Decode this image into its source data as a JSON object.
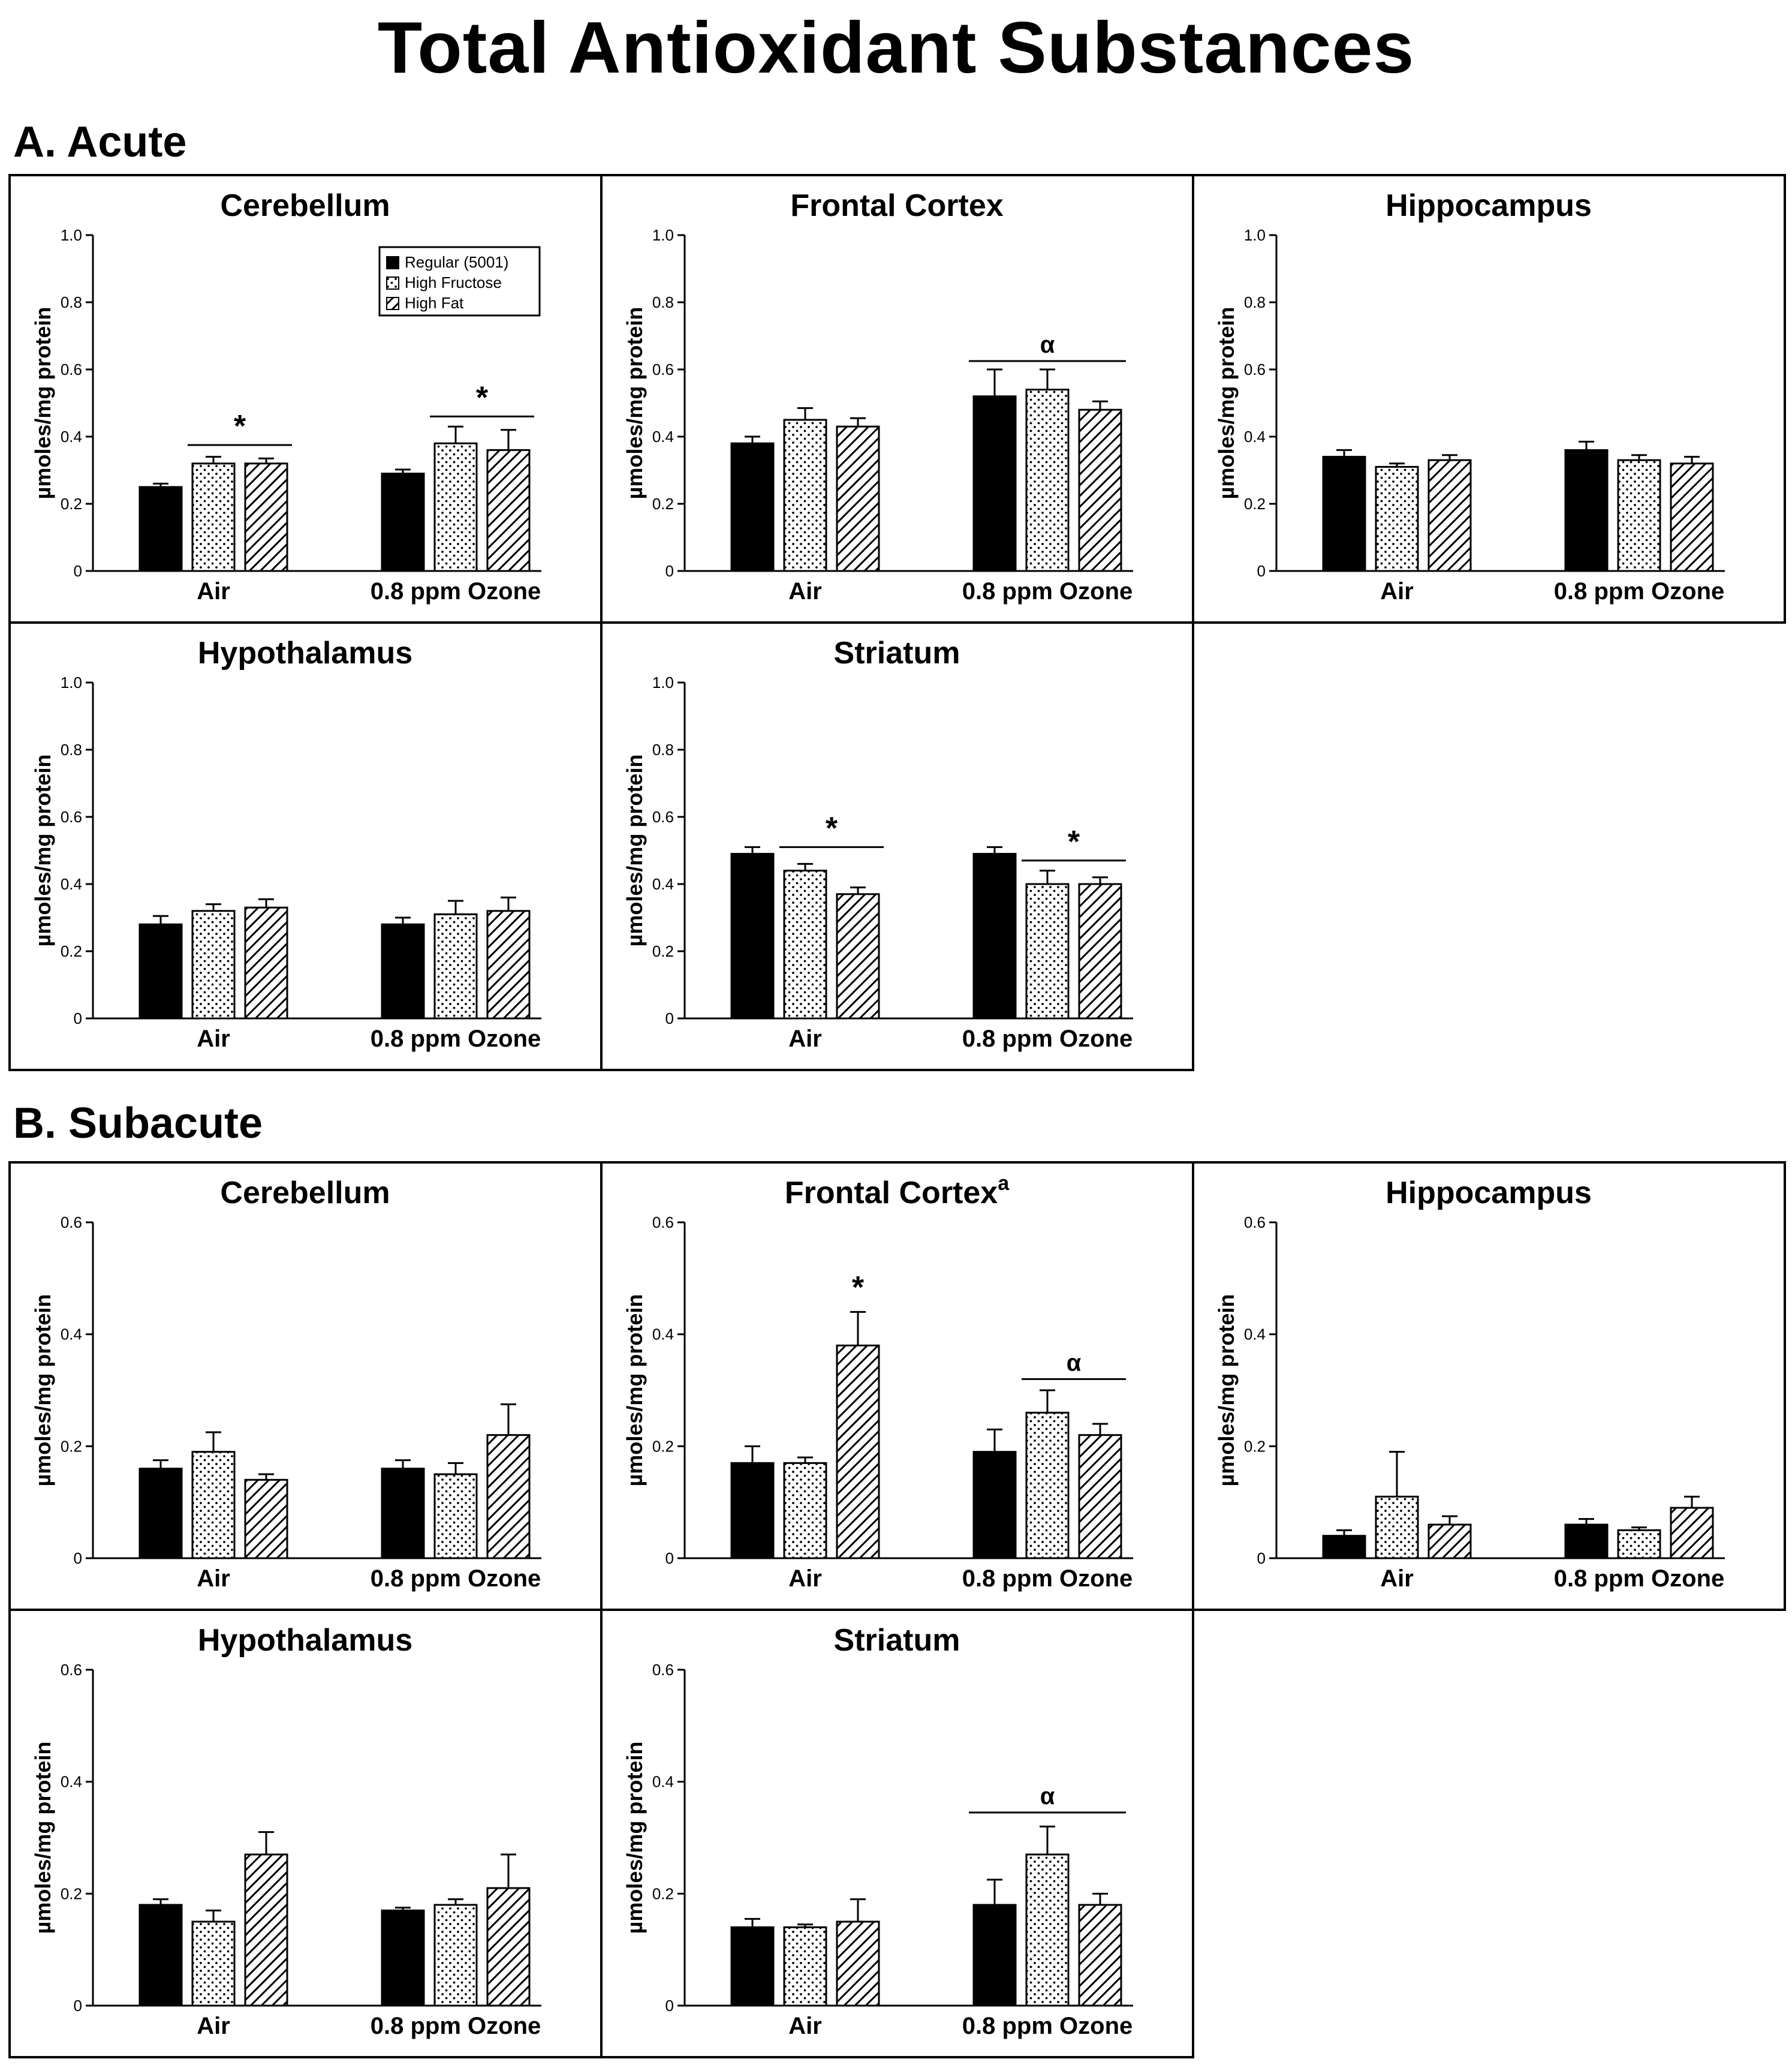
{
  "title": "Total Antioxidant Substances",
  "legend": [
    {
      "label": "Regular (5001)",
      "pattern": "solid"
    },
    {
      "label": "High Fructose",
      "pattern": "dots"
    },
    {
      "label": "High Fat",
      "pattern": "hatch"
    }
  ],
  "colors": {
    "bar_fill": "#000000",
    "background": "#ffffff",
    "stroke": "#000000"
  },
  "chart_data": [
    {
      "section": "A. Acute",
      "panels": [
        {
          "type": "bar",
          "title": "Cerebellum",
          "title_sup": "",
          "ylabel": "µmoles/mg protein",
          "ylim": [
            0,
            1.0
          ],
          "yticks": [
            "0",
            "0.2",
            "0.4",
            "0.6",
            "0.8",
            "1.0"
          ],
          "categories": [
            "Air",
            "0.8 ppm Ozone"
          ],
          "legend": true,
          "series": [
            {
              "name": "Regular (5001)",
              "values": [
                0.25,
                0.29
              ],
              "errors": [
                0.01,
                0.012
              ]
            },
            {
              "name": "High Fructose",
              "values": [
                0.32,
                0.38
              ],
              "errors": [
                0.02,
                0.05
              ]
            },
            {
              "name": "High Fat",
              "values": [
                0.32,
                0.36
              ],
              "errors": [
                0.015,
                0.06
              ]
            }
          ],
          "annotations": [
            {
              "symbol": "*",
              "group": 0,
              "from": 1,
              "to": 2,
              "y": 0.375
            },
            {
              "symbol": "*",
              "group": 1,
              "from": 1,
              "to": 2,
              "y": 0.46
            }
          ]
        },
        {
          "type": "bar",
          "title": "Frontal Cortex",
          "title_sup": "",
          "ylabel": "µmoles/mg protein",
          "ylim": [
            0,
            1.0
          ],
          "yticks": [
            "0",
            "0.2",
            "0.4",
            "0.6",
            "0.8",
            "1.0"
          ],
          "categories": [
            "Air",
            "0.8 ppm Ozone"
          ],
          "legend": false,
          "series": [
            {
              "name": "Regular (5001)",
              "values": [
                0.38,
                0.52
              ],
              "errors": [
                0.02,
                0.08
              ]
            },
            {
              "name": "High Fructose",
              "values": [
                0.45,
                0.54
              ],
              "errors": [
                0.035,
                0.06
              ]
            },
            {
              "name": "High Fat",
              "values": [
                0.43,
                0.48
              ],
              "errors": [
                0.025,
                0.025
              ]
            }
          ],
          "annotations": [
            {
              "symbol": "α",
              "group": 1,
              "from": 0,
              "to": 2,
              "y": 0.625
            }
          ]
        },
        {
          "type": "bar",
          "title": "Hippocampus",
          "title_sup": "",
          "ylabel": "µmoles/mg protein",
          "ylim": [
            0,
            1.0
          ],
          "yticks": [
            "0",
            "0.2",
            "0.4",
            "0.6",
            "0.8",
            "1.0"
          ],
          "categories": [
            "Air",
            "0.8 ppm Ozone"
          ],
          "legend": false,
          "series": [
            {
              "name": "Regular (5001)",
              "values": [
                0.34,
                0.36
              ],
              "errors": [
                0.02,
                0.025
              ]
            },
            {
              "name": "High Fructose",
              "values": [
                0.31,
                0.33
              ],
              "errors": [
                0.01,
                0.015
              ]
            },
            {
              "name": "High Fat",
              "values": [
                0.33,
                0.32
              ],
              "errors": [
                0.015,
                0.02
              ]
            }
          ],
          "annotations": []
        },
        {
          "type": "bar",
          "title": "Hypothalamus",
          "title_sup": "",
          "ylabel": "µmoles/mg protein",
          "ylim": [
            0,
            1.0
          ],
          "yticks": [
            "0",
            "0.2",
            "0.4",
            "0.6",
            "0.8",
            "1.0"
          ],
          "categories": [
            "Air",
            "0.8 ppm Ozone"
          ],
          "legend": false,
          "series": [
            {
              "name": "Regular (5001)",
              "values": [
                0.28,
                0.28
              ],
              "errors": [
                0.025,
                0.02
              ]
            },
            {
              "name": "High Fructose",
              "values": [
                0.32,
                0.31
              ],
              "errors": [
                0.02,
                0.04
              ]
            },
            {
              "name": "High Fat",
              "values": [
                0.33,
                0.32
              ],
              "errors": [
                0.025,
                0.04
              ]
            }
          ],
          "annotations": []
        },
        {
          "type": "bar",
          "title": "Striatum",
          "title_sup": "",
          "ylabel": "µmoles/mg protein",
          "ylim": [
            0,
            1.0
          ],
          "yticks": [
            "0",
            "0.2",
            "0.4",
            "0.6",
            "0.8",
            "1.0"
          ],
          "categories": [
            "Air",
            "0.8 ppm Ozone"
          ],
          "legend": false,
          "series": [
            {
              "name": "Regular (5001)",
              "values": [
                0.49,
                0.49
              ],
              "errors": [
                0.02,
                0.02
              ]
            },
            {
              "name": "High Fructose",
              "values": [
                0.44,
                0.4
              ],
              "errors": [
                0.02,
                0.04
              ]
            },
            {
              "name": "High Fat",
              "values": [
                0.37,
                0.4
              ],
              "errors": [
                0.02,
                0.02
              ]
            }
          ],
          "annotations": [
            {
              "symbol": "*",
              "group": 0,
              "from": 1,
              "to": 2,
              "y": 0.51
            },
            {
              "symbol": "*",
              "group": 1,
              "from": 1,
              "to": 2,
              "y": 0.47
            }
          ]
        }
      ]
    },
    {
      "section": "B. Subacute",
      "panels": [
        {
          "type": "bar",
          "title": "Cerebellum",
          "title_sup": "",
          "ylabel": "µmoles/mg protein",
          "ylim": [
            0,
            0.6
          ],
          "yticks": [
            "0",
            "0.2",
            "0.4",
            "0.6"
          ],
          "categories": [
            "Air",
            "0.8 ppm Ozone"
          ],
          "legend": false,
          "series": [
            {
              "name": "Regular (5001)",
              "values": [
                0.16,
                0.16
              ],
              "errors": [
                0.015,
                0.015
              ]
            },
            {
              "name": "High Fructose",
              "values": [
                0.19,
                0.15
              ],
              "errors": [
                0.035,
                0.02
              ]
            },
            {
              "name": "High Fat",
              "values": [
                0.14,
                0.22
              ],
              "errors": [
                0.01,
                0.055
              ]
            }
          ],
          "annotations": []
        },
        {
          "type": "bar",
          "title": "Frontal Cortex",
          "title_sup": "a",
          "ylabel": "µmoles/mg protein",
          "ylim": [
            0,
            0.6
          ],
          "yticks": [
            "0",
            "0.2",
            "0.4",
            "0.6"
          ],
          "categories": [
            "Air",
            "0.8 ppm Ozone"
          ],
          "legend": false,
          "series": [
            {
              "name": "Regular (5001)",
              "values": [
                0.17,
                0.19
              ],
              "errors": [
                0.03,
                0.04
              ]
            },
            {
              "name": "High Fructose",
              "values": [
                0.17,
                0.26
              ],
              "errors": [
                0.01,
                0.04
              ]
            },
            {
              "name": "High Fat",
              "values": [
                0.38,
                0.22
              ],
              "errors": [
                0.06,
                0.02
              ]
            }
          ],
          "annotations": [
            {
              "symbol": "*",
              "group": 0,
              "from": 2,
              "to": 2,
              "y": 0.45,
              "line": false
            },
            {
              "symbol": "α",
              "group": 1,
              "from": 1,
              "to": 2,
              "y": 0.32
            }
          ]
        },
        {
          "type": "bar",
          "title": "Hippocampus",
          "title_sup": "",
          "ylabel": "µmoles/mg protein",
          "ylim": [
            0,
            0.6
          ],
          "yticks": [
            "0",
            "0.2",
            "0.4",
            "0.6"
          ],
          "categories": [
            "Air",
            "0.8 ppm Ozone"
          ],
          "legend": false,
          "series": [
            {
              "name": "Regular (5001)",
              "values": [
                0.04,
                0.06
              ],
              "errors": [
                0.01,
                0.01
              ]
            },
            {
              "name": "High Fructose",
              "values": [
                0.11,
                0.05
              ],
              "errors": [
                0.08,
                0.005
              ]
            },
            {
              "name": "High Fat",
              "values": [
                0.06,
                0.09
              ],
              "errors": [
                0.015,
                0.02
              ]
            }
          ],
          "annotations": []
        },
        {
          "type": "bar",
          "title": "Hypothalamus",
          "title_sup": "",
          "ylabel": "µmoles/mg protein",
          "ylim": [
            0,
            0.6
          ],
          "yticks": [
            "0",
            "0.2",
            "0.4",
            "0.6"
          ],
          "categories": [
            "Air",
            "0.8 ppm Ozone"
          ],
          "legend": false,
          "series": [
            {
              "name": "Regular (5001)",
              "values": [
                0.18,
                0.17
              ],
              "errors": [
                0.01,
                0.005
              ]
            },
            {
              "name": "High Fructose",
              "values": [
                0.15,
                0.18
              ],
              "errors": [
                0.02,
                0.01
              ]
            },
            {
              "name": "High Fat",
              "values": [
                0.27,
                0.21
              ],
              "errors": [
                0.04,
                0.06
              ]
            }
          ],
          "annotations": []
        },
        {
          "type": "bar",
          "title": "Striatum",
          "title_sup": "",
          "ylabel": "µmoles/mg protein",
          "ylim": [
            0,
            0.6
          ],
          "yticks": [
            "0",
            "0.2",
            "0.4",
            "0.6"
          ],
          "categories": [
            "Air",
            "0.8 ppm Ozone"
          ],
          "legend": false,
          "series": [
            {
              "name": "Regular (5001)",
              "values": [
                0.14,
                0.18
              ],
              "errors": [
                0.015,
                0.045
              ]
            },
            {
              "name": "High Fructose",
              "values": [
                0.14,
                0.27
              ],
              "errors": [
                0.005,
                0.05
              ]
            },
            {
              "name": "High Fat",
              "values": [
                0.15,
                0.18
              ],
              "errors": [
                0.04,
                0.02
              ]
            }
          ],
          "annotations": [
            {
              "symbol": "α",
              "group": 1,
              "from": 0,
              "to": 2,
              "y": 0.345
            }
          ]
        }
      ]
    }
  ]
}
